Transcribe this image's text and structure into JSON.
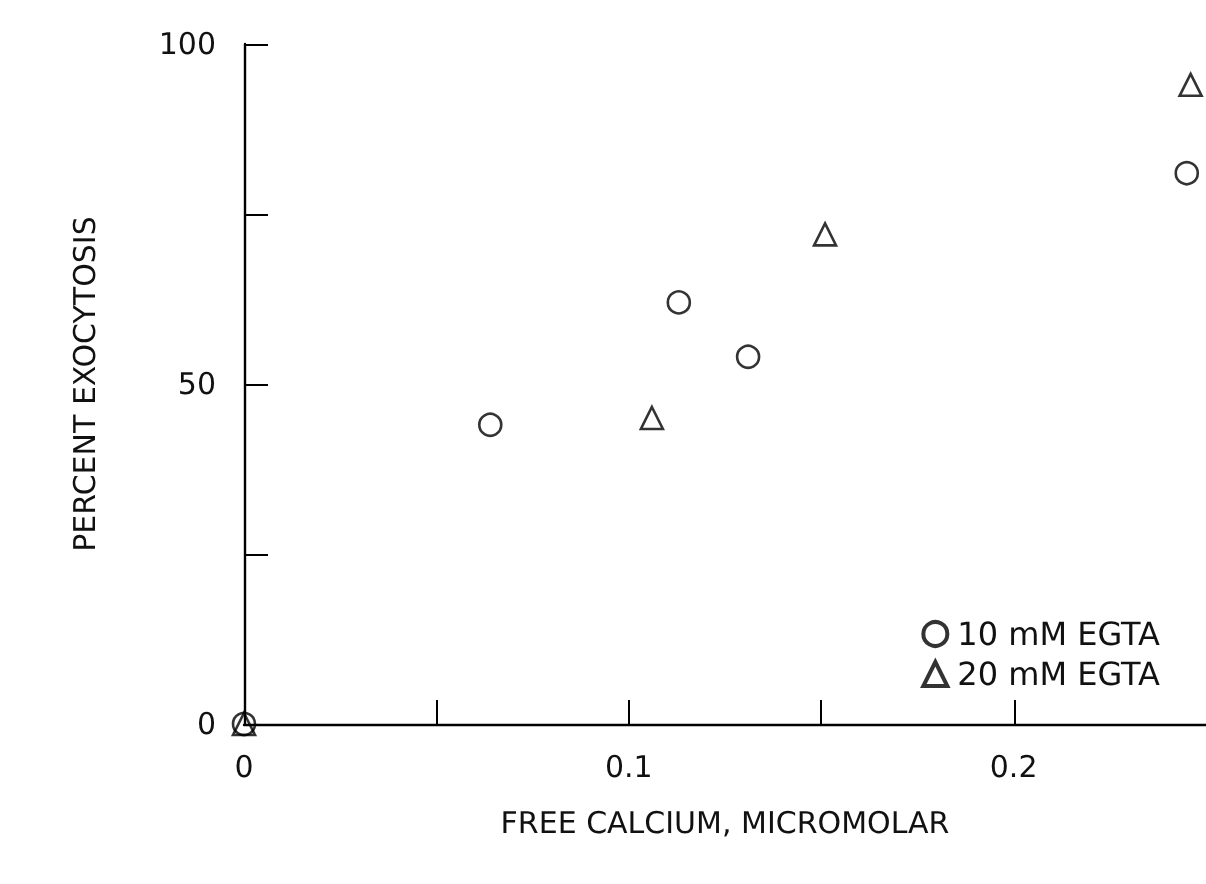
{
  "chart_data": {
    "type": "scatter",
    "xlabel": "FREE CALCIUM, MICROMOLAR",
    "ylabel": "PERCENT EXOCYTOSIS",
    "xlim": [
      0,
      0.25
    ],
    "xticks": [
      0,
      {
        "value": 0.05,
        "label": null
      },
      0.1,
      {
        "value": 0.15,
        "label": null
      },
      0.2
    ],
    "ylim": [
      0,
      100
    ],
    "yticks": [
      0,
      {
        "value": 25,
        "label": null
      },
      50,
      {
        "value": 75,
        "label": null
      },
      100
    ],
    "grid": false,
    "legend": "bottom right",
    "series": [
      {
        "name": "10 mM EGTA",
        "color": "#000000",
        "marker": "circle",
        "x": [
          0,
          0.064,
          0.113,
          0.131,
          0.245
        ],
        "values": [
          0,
          44,
          62,
          54,
          81
        ]
      },
      {
        "name": "20 mM EGTA",
        "color": "#000000",
        "marker": "triangle",
        "x": [
          0,
          0.106,
          0.151,
          0.246
        ],
        "values": [
          0,
          45,
          72,
          94
        ]
      }
    ]
  }
}
